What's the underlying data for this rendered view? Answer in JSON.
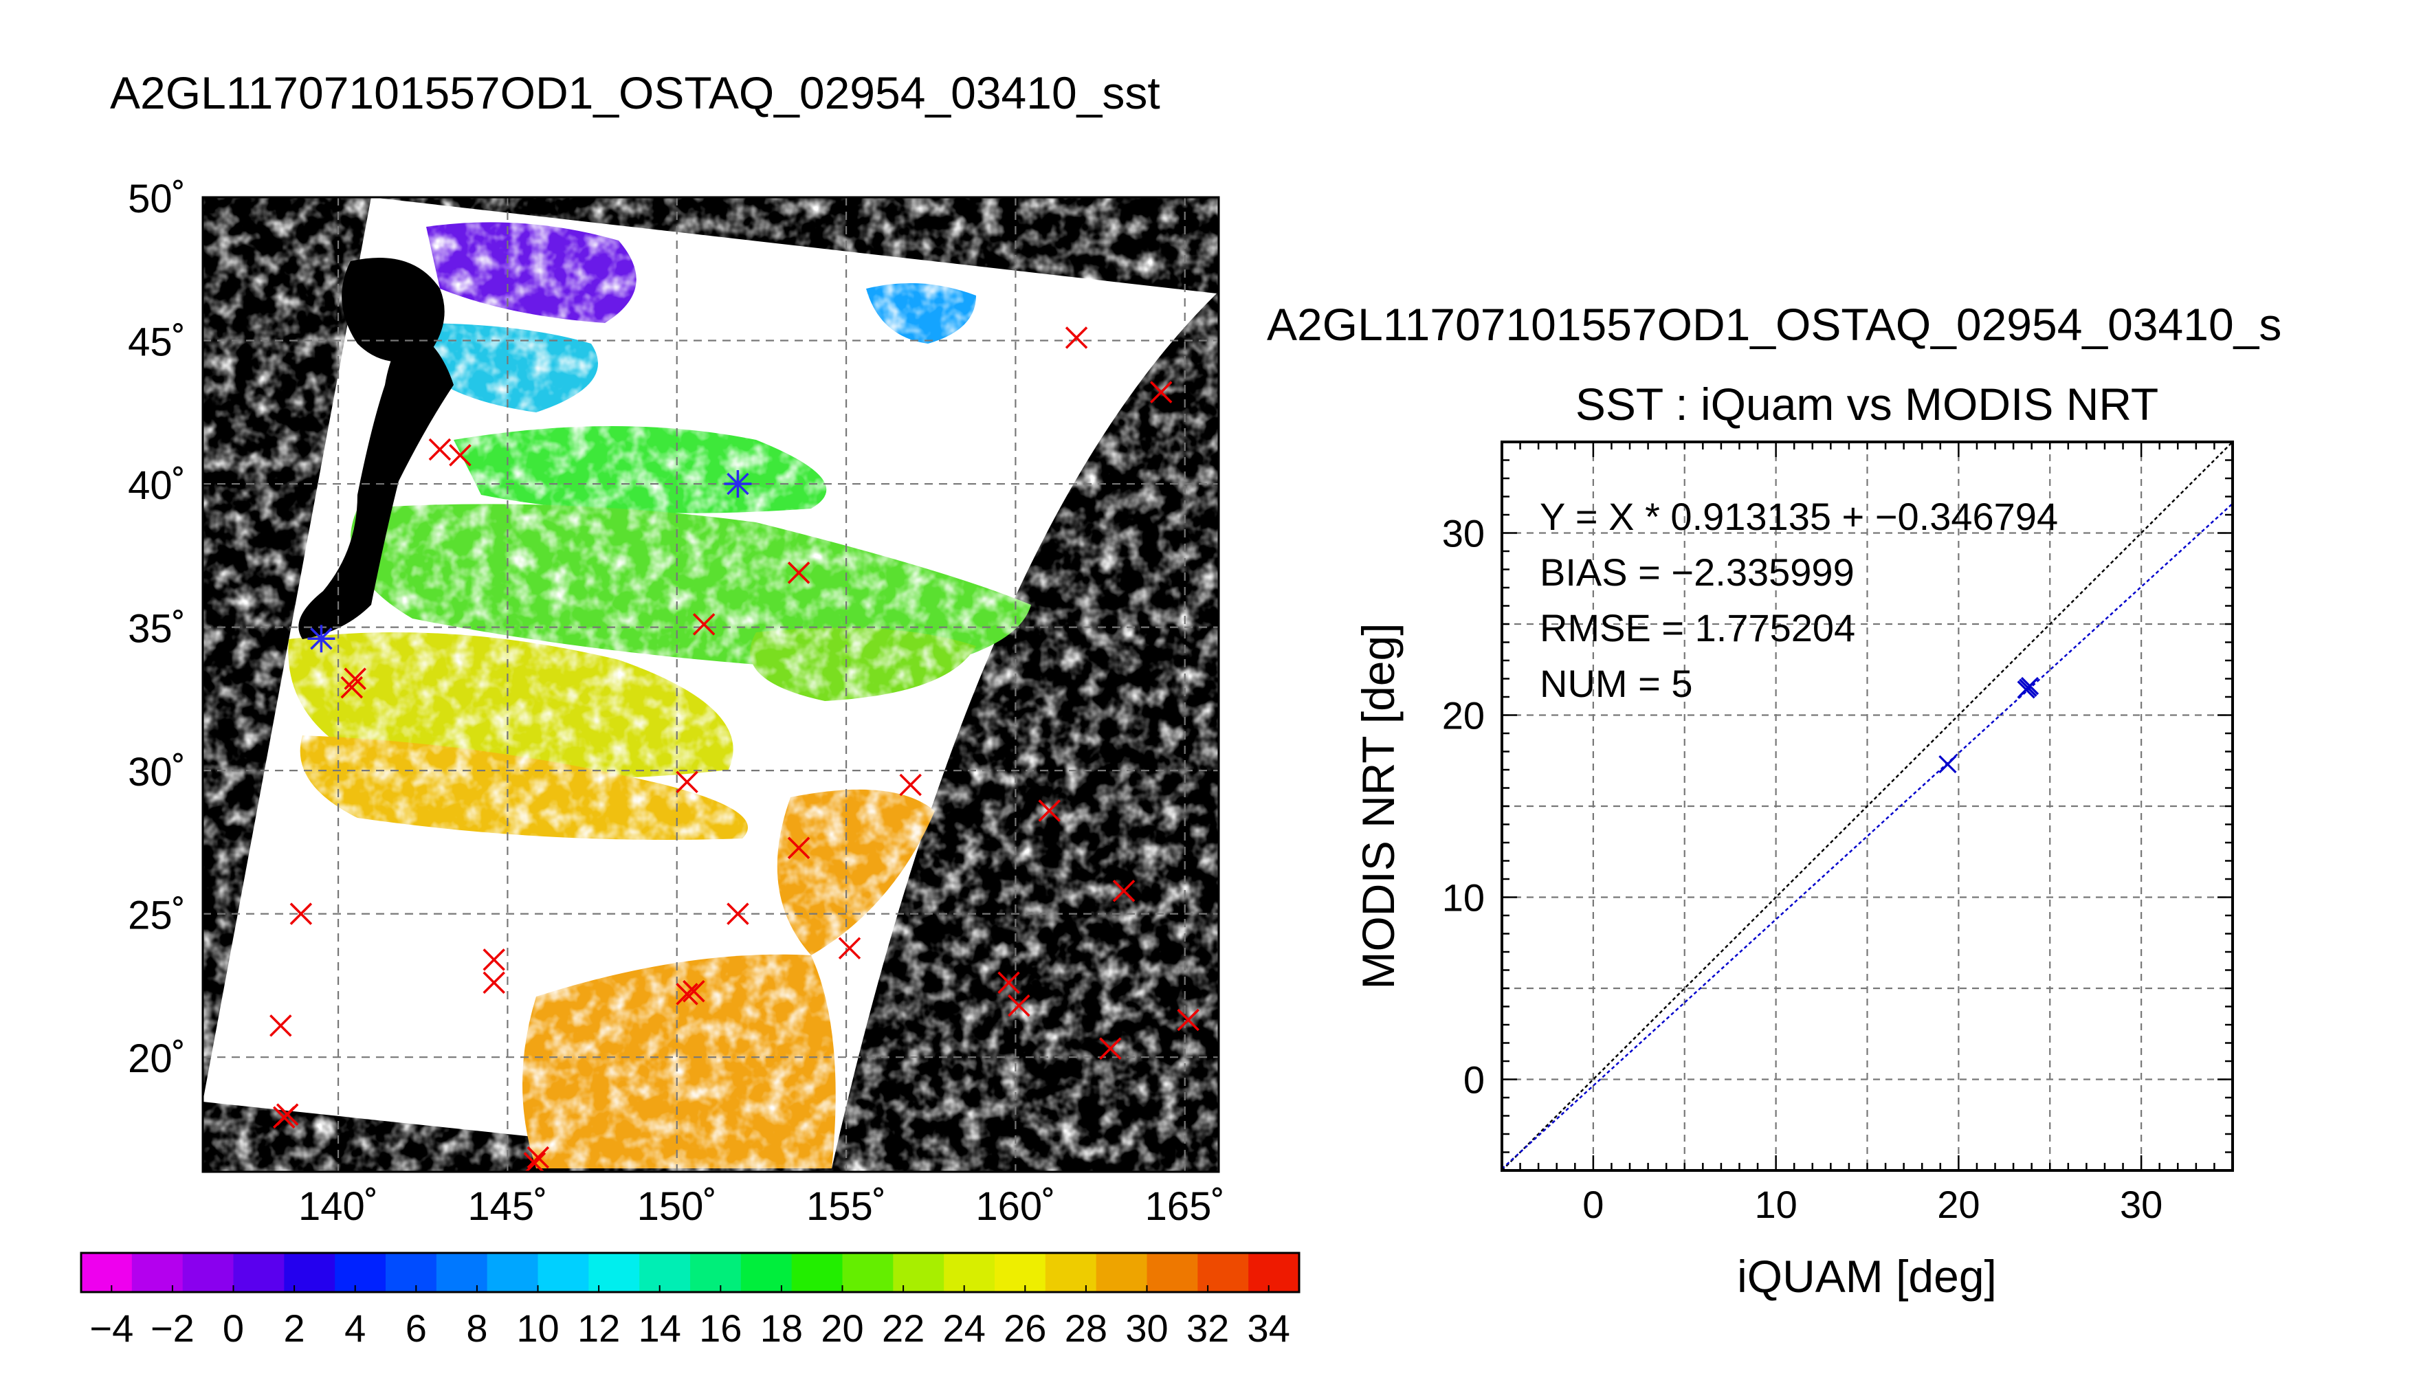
{
  "map_panel": {
    "title": "A2GL11707101557OD1_OSTAQ_02954_03410_sst",
    "lat_tick_labels": [
      "50˚",
      "45˚",
      "40˚",
      "35˚",
      "30˚",
      "25˚",
      "20˚"
    ],
    "lon_tick_labels": [
      "140˚",
      "145˚",
      "150˚",
      "155˚",
      "160˚",
      "165˚"
    ],
    "colorbar": {
      "tick_labels": [
        "−4",
        "−2",
        "0",
        "2",
        "4",
        "6",
        "8",
        "10",
        "12",
        "14",
        "16",
        "18",
        "20",
        "22",
        "24",
        "26",
        "28",
        "30",
        "32",
        "34"
      ],
      "range": [
        -5,
        35
      ],
      "colors": [
        "#ee00ee",
        "#b400ee",
        "#8a00ee",
        "#5a00ee",
        "#2400ee",
        "#0022ff",
        "#004cff",
        "#0078ff",
        "#00a6ff",
        "#00d0ff",
        "#00eeee",
        "#00eeb4",
        "#00ee7a",
        "#00ee3c",
        "#22ee00",
        "#64ee00",
        "#a8ee00",
        "#d8ee00",
        "#eeee00",
        "#eecc00",
        "#eea400",
        "#ee7800",
        "#ee4a00",
        "#ee1a00"
      ]
    },
    "colors": {
      "land_background": "#000000",
      "no_data": "#ffffff",
      "marker_in_swath": "#2a2aee",
      "marker_out_swath": "#ee0000"
    }
  },
  "scatter_panel": {
    "title": "A2GL11707101557OD1_OSTAQ_02954_03410_s",
    "subtitle": "SST : iQuam vs MODIS NRT",
    "stats": [
      "Y = X * 0.913135 + −0.346794",
      "BIAS = −2.335999",
      "RMSE = 1.775204",
      "NUM = 5"
    ],
    "colors": {
      "fit_line": "#0000cc",
      "identity_line": "#000000",
      "points": "#0000cc"
    }
  },
  "chart_data": [
    {
      "type": "scatter",
      "xlabel": "",
      "ylabel": "",
      "xlim": [
        136,
        166
      ],
      "ylim": [
        16,
        50
      ],
      "series": [
        {
          "marker": "x",
          "points": [
            [
              139.5,
              34.6
            ],
            [
              151.8,
              40.0
            ],
            [
              140.5,
              33.2
            ],
            [
              140.4,
              32.9
            ],
            [
              143.0,
              41.2
            ],
            [
              143.6,
              41.0
            ],
            [
              150.3,
              29.6
            ],
            [
              150.8,
              35.1
            ],
            [
              153.6,
              36.9
            ],
            [
              153.6,
              27.3
            ],
            [
              156.9,
              29.5
            ],
            [
              155.1,
              23.8
            ],
            [
              151.8,
              25.0
            ],
            [
              150.3,
              22.2
            ],
            [
              150.5,
              22.3
            ],
            [
              144.6,
              23.4
            ],
            [
              144.6,
              22.6
            ],
            [
              138.9,
              25.0
            ],
            [
              138.3,
              21.1
            ],
            [
              138.4,
              17.9
            ],
            [
              138.5,
              18.0
            ],
            [
              145.8,
              16.3
            ],
            [
              145.9,
              16.5
            ],
            [
              159.8,
              22.6
            ],
            [
              160.1,
              21.8
            ],
            [
              161.0,
              28.6
            ],
            [
              163.2,
              25.8
            ],
            [
              162.8,
              20.3
            ],
            [
              165.1,
              21.3
            ],
            [
              161.8,
              45.1
            ],
            [
              164.3,
              43.2
            ]
          ]
        }
      ]
    },
    {
      "type": "scatter",
      "title": "SST : iQuam vs MODIS NRT",
      "xlabel": "iQUAM [deg]",
      "ylabel": "MODIS NRT [deg]",
      "xlim": [
        -5,
        35
      ],
      "ylim": [
        -5,
        35
      ],
      "x_ticks": [
        0,
        10,
        20,
        30
      ],
      "y_ticks": [
        0,
        10,
        20,
        30
      ],
      "x_tick_labels": [
        "0",
        "10",
        "20",
        "30"
      ],
      "y_tick_labels": [
        "0",
        "10",
        "20",
        "30"
      ],
      "grid": true,
      "series": [
        {
          "marker": "x",
          "points": [
            [
              19.4,
              17.3
            ],
            [
              23.8,
              21.5
            ],
            [
              23.7,
              21.4
            ],
            [
              23.9,
              21.6
            ],
            [
              23.8,
              21.5
            ]
          ]
        }
      ],
      "lines": [
        {
          "slope": 1.0,
          "intercept": 0.0,
          "style": "dotted"
        },
        {
          "slope": 0.913135,
          "intercept": -0.346794,
          "style": "dotted"
        }
      ]
    }
  ]
}
